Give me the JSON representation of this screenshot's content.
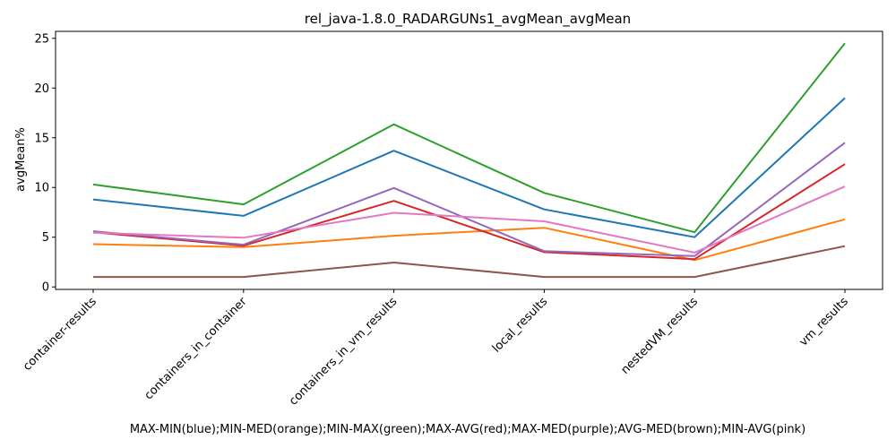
{
  "chart_data": {
    "type": "line",
    "title": "rel_java-1.8.0_RADARGUNs1_avgMean_avgMean",
    "xlabel": "MAX-MIN(blue);MIN-MED(orange);MIN-MAX(green);MAX-AVG(red);MAX-MED(purple);AVG-MED(brown);MIN-AVG(pink)",
    "ylabel": "avgMean%",
    "categories": [
      "container-results",
      "containers_in_container",
      "containers_in_vm_results",
      "local_results",
      "nestedVM_results",
      "vm_results"
    ],
    "yticks": [
      0,
      5,
      10,
      15,
      20,
      25
    ],
    "ylim": [
      -0.25,
      25.7
    ],
    "grid": false,
    "legend": "none",
    "series": [
      {
        "color": "#1f77b4",
        "values": [
          8.8,
          7.15,
          13.7,
          7.8,
          5.0,
          19.0
        ]
      },
      {
        "color": "#ff7f0e",
        "values": [
          4.3,
          4.0,
          5.15,
          5.95,
          2.7,
          6.8
        ]
      },
      {
        "color": "#2ca02c",
        "values": [
          10.3,
          8.3,
          16.35,
          9.45,
          5.5,
          24.5
        ]
      },
      {
        "color": "#d62728",
        "values": [
          5.5,
          4.15,
          8.65,
          3.5,
          2.8,
          12.35
        ]
      },
      {
        "color": "#9467bd",
        "values": [
          5.6,
          4.25,
          9.95,
          3.6,
          3.1,
          14.5
        ]
      },
      {
        "color": "#8c564b",
        "values": [
          1.0,
          1.0,
          2.45,
          1.0,
          1.0,
          4.1
        ]
      },
      {
        "color": "#e377c2",
        "values": [
          5.45,
          4.95,
          7.45,
          6.6,
          3.45,
          10.1
        ]
      }
    ]
  }
}
